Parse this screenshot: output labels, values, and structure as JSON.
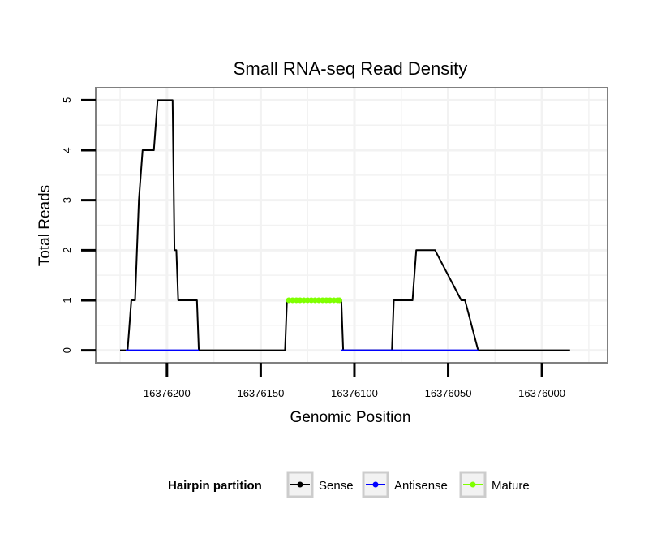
{
  "chart_data": {
    "type": "line",
    "title": "Small RNA-seq Read Density",
    "xlabel": "Genomic Position",
    "ylabel": "Total Reads",
    "xlim": [
      16376238,
      16375965
    ],
    "x_reversed": true,
    "ylim": [
      -0.25,
      5.25
    ],
    "xticks": [
      16376200,
      16376150,
      16376100,
      16376050,
      16376000
    ],
    "xtick_labels": [
      "16376200",
      "16376150",
      "16376100",
      "16376050",
      "16376000"
    ],
    "yticks": [
      0,
      1,
      2,
      3,
      4,
      5
    ],
    "ytick_labels": [
      "0",
      "1",
      "2",
      "3",
      "4",
      "5"
    ],
    "grid": true,
    "legend": {
      "title": "Hairpin partition",
      "position": "bottom",
      "entries": [
        {
          "name": "Sense",
          "color": "#000000"
        },
        {
          "name": "Antisense",
          "color": "#0000ff"
        },
        {
          "name": "Mature",
          "color": "#7fff00"
        }
      ]
    },
    "series": [
      {
        "name": "Sense",
        "color": "#000000",
        "x": [
          16376225,
          16376221,
          16376219,
          16376217,
          16376217,
          16376215,
          16376213,
          16376207,
          16376205,
          16376198,
          16376197,
          16376196,
          16376195,
          16376194,
          16376192,
          16376184,
          16376183,
          16376137,
          16376136,
          16376107,
          16376106,
          16376080,
          16376079,
          16376069,
          16376067,
          16376059,
          16376057,
          16376043,
          16376041,
          16376034,
          16376032,
          16375988,
          16375985
        ],
        "y": [
          0,
          0,
          1,
          1,
          1,
          3,
          4,
          4,
          5,
          5,
          5,
          2,
          2,
          1,
          1,
          1,
          0,
          0,
          1,
          1,
          0,
          0,
          1,
          1,
          2,
          2,
          2,
          1,
          1,
          0,
          0,
          0,
          0
        ]
      },
      {
        "name": "Antisense",
        "color": "#0000ff",
        "x": [
          16376222,
          16376183,
          16376107,
          16376034
        ],
        "y": [
          0,
          0,
          0,
          0
        ]
      },
      {
        "name": "Mature",
        "color": "#7fff00",
        "x": [
          16376135,
          16376133,
          16376131,
          16376129,
          16376127,
          16376125,
          16376123,
          16376121,
          16376119,
          16376117,
          16376115,
          16376113,
          16376111,
          16376109,
          16376108
        ],
        "y": [
          1,
          1,
          1,
          1,
          1,
          1,
          1,
          1,
          1,
          1,
          1,
          1,
          1,
          1,
          1
        ]
      }
    ]
  }
}
